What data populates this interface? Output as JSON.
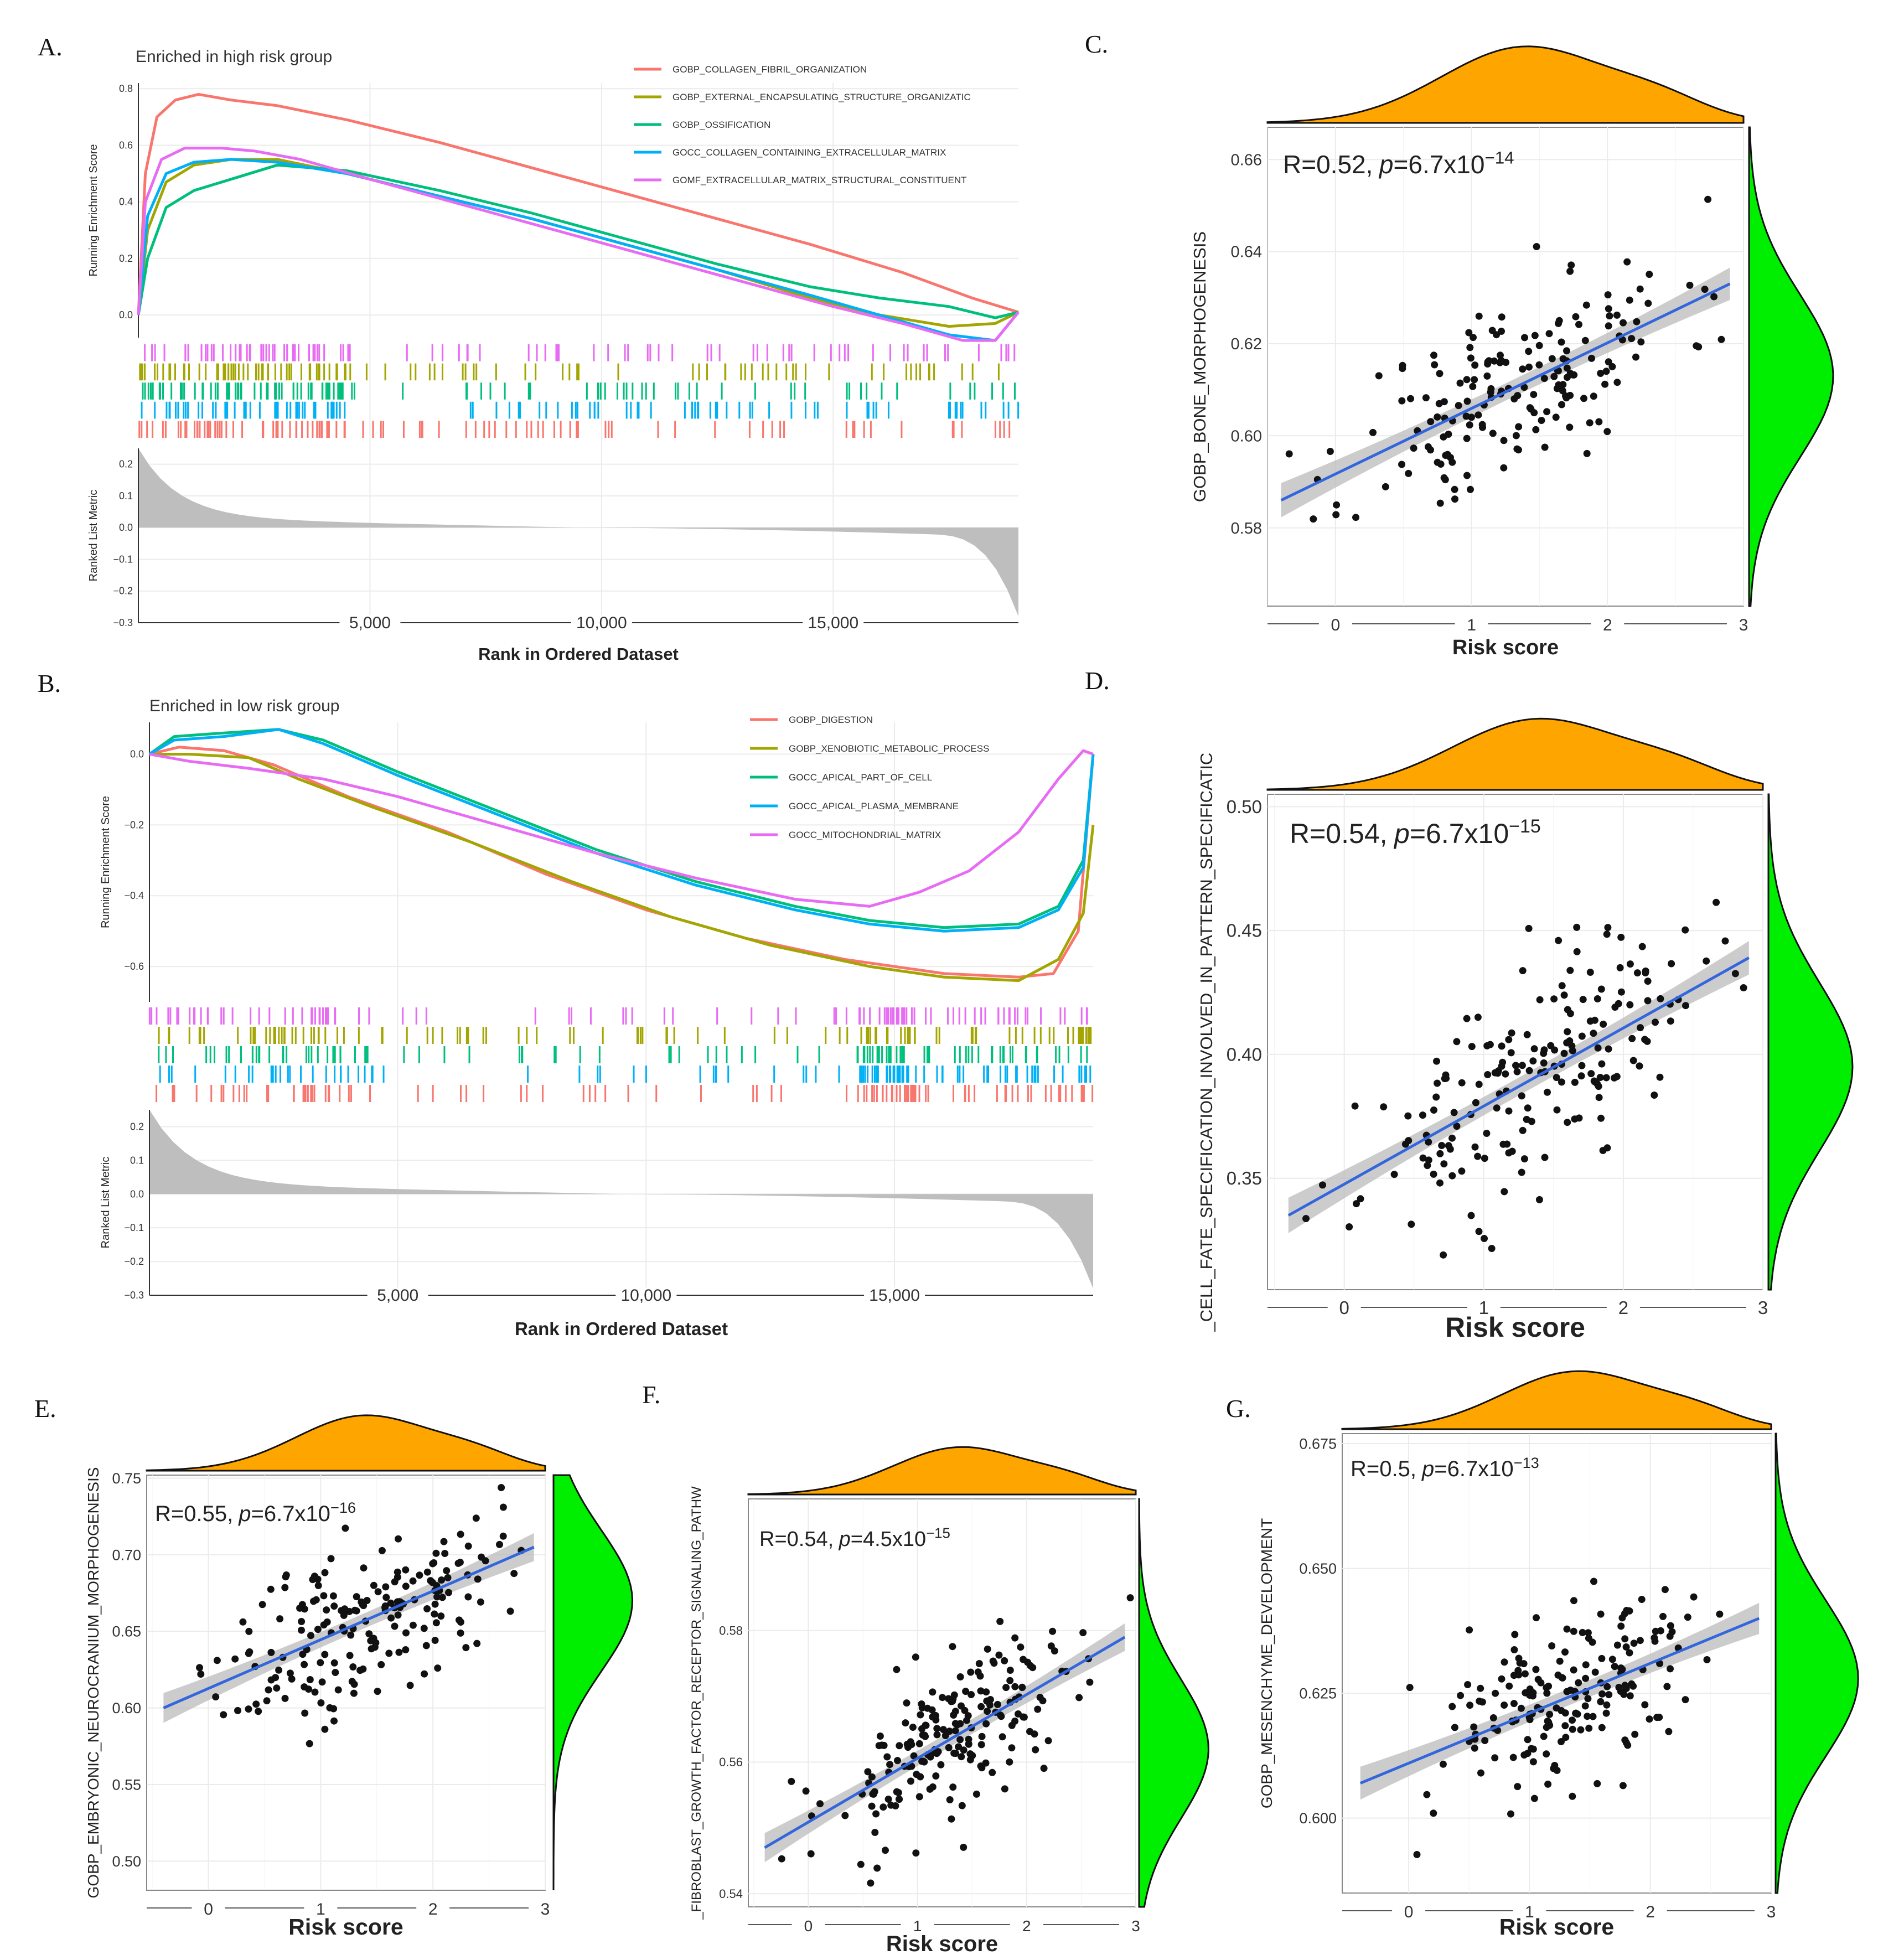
{
  "colors": {
    "orange_density": "#FFA500",
    "green_density": "#00EE00",
    "regression": "#3366DD",
    "ci_band": "#BBBBBB",
    "metric_area": "#BEBEBE",
    "points": "#111111"
  },
  "chart_data": [
    {
      "id": "A",
      "type": "line",
      "panel_label": "A.",
      "title": "Enriched in high risk group",
      "xlabel": "Rank in Ordered Dataset",
      "ylabel": "Running Enrichment Score",
      "ylabel_bottom": "Ranked List Metric",
      "xlim": [
        0,
        19000
      ],
      "ylim": [
        -0.08,
        0.82
      ],
      "yticks": [
        0.0,
        0.2,
        0.4,
        0.6,
        0.8
      ],
      "ytick_labels": [
        "0.0",
        "0.2",
        "0.4",
        "0.6",
        "0.8"
      ],
      "xticks": [
        5000,
        10000,
        15000
      ],
      "xtick_labels": [
        "5,000",
        "10,000",
        "15,000"
      ],
      "metric_ylim": [
        -0.3,
        0.25
      ],
      "metric_yticks": [
        0.2,
        0.1,
        0.0,
        -0.1,
        -0.2,
        -0.3
      ],
      "metric_ytick_labels": [
        "0.2",
        "0.1",
        "0.0",
        "−0.1",
        "−0.2",
        "−0.3"
      ],
      "series": [
        {
          "name": "GOBP_COLLAGEN_FIBRIL_ORGANIZATION",
          "color": "#F8766D",
          "x": [
            0,
            150,
            400,
            800,
            1300,
            2000,
            3000,
            4500,
            6500,
            8500,
            10500,
            12500,
            14500,
            16500,
            18000,
            19000
          ],
          "y": [
            0,
            0.5,
            0.7,
            0.76,
            0.78,
            0.76,
            0.74,
            0.69,
            0.61,
            0.52,
            0.43,
            0.34,
            0.25,
            0.15,
            0.06,
            0.01
          ]
        },
        {
          "name": "GOBP_EXTERNAL_ENCAPSULATING_STRUCTURE_ORGANIZATIC",
          "color": "#A3A500",
          "x": [
            0,
            200,
            600,
            1200,
            2000,
            3000,
            4500,
            6500,
            8500,
            10500,
            12500,
            14500,
            16000,
            17500,
            18500,
            19000
          ],
          "y": [
            0,
            0.3,
            0.47,
            0.53,
            0.55,
            0.55,
            0.5,
            0.42,
            0.34,
            0.25,
            0.16,
            0.06,
            0.0,
            -0.04,
            -0.03,
            0.01
          ]
        },
        {
          "name": "GOBP_OSSIFICATION",
          "color": "#00BF7D",
          "x": [
            0,
            200,
            600,
            1200,
            2000,
            3000,
            4500,
            6500,
            8500,
            10500,
            12500,
            14500,
            16000,
            17500,
            18500,
            19000
          ],
          "y": [
            0,
            0.2,
            0.38,
            0.44,
            0.48,
            0.53,
            0.51,
            0.44,
            0.36,
            0.27,
            0.18,
            0.1,
            0.06,
            0.03,
            -0.01,
            0.01
          ]
        },
        {
          "name": "GOCC_COLLAGEN_CONTAINING_EXTRACELLULAR_MATRIX",
          "color": "#00B0F6",
          "x": [
            0,
            200,
            600,
            1200,
            2000,
            3000,
            4500,
            6500,
            8500,
            10500,
            12500,
            14500,
            16000,
            17500,
            18500,
            19000
          ],
          "y": [
            0,
            0.35,
            0.5,
            0.54,
            0.55,
            0.54,
            0.5,
            0.42,
            0.34,
            0.25,
            0.16,
            0.07,
            0.0,
            -0.07,
            -0.09,
            0.01
          ]
        },
        {
          "name": "GOMF_EXTRACELLULAR_MATRIX_STRUCTURAL_CONSTITUENT",
          "color": "#E76BF3",
          "x": [
            0,
            150,
            500,
            1000,
            1800,
            2500,
            3500,
            5000,
            7000,
            9000,
            11000,
            13000,
            15000,
            16500,
            17800,
            18500,
            19000
          ],
          "y": [
            0,
            0.4,
            0.55,
            0.59,
            0.59,
            0.58,
            0.55,
            0.48,
            0.39,
            0.3,
            0.21,
            0.12,
            0.03,
            -0.03,
            -0.09,
            -0.09,
            0.01
          ]
        }
      ]
    },
    {
      "id": "B",
      "type": "line",
      "panel_label": "B.",
      "title": "Enriched in low risk group",
      "xlabel": "Rank in Ordered Dataset",
      "ylabel": "Running Enrichment Score",
      "ylabel_bottom": "Ranked List Metric",
      "xlim": [
        0,
        19000
      ],
      "ylim": [
        -0.7,
        0.09
      ],
      "yticks": [
        0.0,
        -0.2,
        -0.4,
        -0.6
      ],
      "ytick_labels": [
        "0.0",
        "−0.2",
        "−0.4",
        "−0.6"
      ],
      "xticks": [
        5000,
        10000,
        15000
      ],
      "xtick_labels": [
        "5,000",
        "10,000",
        "15,000"
      ],
      "metric_ylim": [
        -0.3,
        0.25
      ],
      "metric_yticks": [
        0.2,
        0.1,
        0.0,
        -0.1,
        -0.2,
        -0.3
      ],
      "metric_ytick_labels": [
        "0.2",
        "0.1",
        "0.0",
        "−0.1",
        "−0.2",
        "−0.3"
      ],
      "series": [
        {
          "name": "GOBP_DIGESTION",
          "color": "#F8766D",
          "x": [
            0,
            600,
            1500,
            2500,
            4000,
            6000,
            8000,
            10000,
            12000,
            14000,
            16000,
            17500,
            18200,
            18700,
            19000
          ],
          "y": [
            0,
            0.02,
            0.01,
            -0.03,
            -0.12,
            -0.22,
            -0.34,
            -0.44,
            -0.52,
            -0.58,
            -0.62,
            -0.63,
            -0.62,
            -0.5,
            0.0
          ]
        },
        {
          "name": "GOBP_XENOBIOTIC_METABOLIC_PROCESS",
          "color": "#A3A500",
          "x": [
            0,
            800,
            2000,
            3000,
            4500,
            6500,
            8500,
            10500,
            12500,
            14500,
            16000,
            17500,
            18300,
            18800,
            19000
          ],
          "y": [
            0,
            0.0,
            -0.01,
            -0.07,
            -0.15,
            -0.25,
            -0.36,
            -0.46,
            -0.54,
            -0.6,
            -0.63,
            -0.64,
            -0.58,
            -0.45,
            -0.2
          ]
        },
        {
          "name": "GOCC_APICAL_PART_OF_CELL",
          "color": "#00BF7D",
          "x": [
            0,
            500,
            1500,
            2600,
            3500,
            5000,
            7000,
            9000,
            11000,
            13000,
            14500,
            16000,
            17500,
            18300,
            18800,
            19000
          ],
          "y": [
            0,
            0.05,
            0.06,
            0.07,
            0.04,
            -0.05,
            -0.16,
            -0.27,
            -0.36,
            -0.43,
            -0.47,
            -0.49,
            -0.48,
            -0.43,
            -0.3,
            0.0
          ]
        },
        {
          "name": "GOCC_APICAL_PLASMA_MEMBRANE",
          "color": "#00B0F6",
          "x": [
            0,
            500,
            1500,
            2600,
            3500,
            5000,
            7000,
            9000,
            11000,
            13000,
            14500,
            16000,
            17500,
            18300,
            18800,
            19000
          ],
          "y": [
            0,
            0.04,
            0.05,
            0.07,
            0.03,
            -0.06,
            -0.17,
            -0.28,
            -0.37,
            -0.44,
            -0.48,
            -0.5,
            -0.49,
            -0.44,
            -0.32,
            0.0
          ]
        },
        {
          "name": "GOCC_MITOCHONDRIAL_MATRIX",
          "color": "#E76BF3",
          "x": [
            0,
            800,
            2000,
            3500,
            5000,
            7000,
            9000,
            11000,
            13000,
            14500,
            15500,
            16500,
            17500,
            18300,
            18800,
            19000
          ],
          "y": [
            0,
            -0.02,
            -0.04,
            -0.07,
            -0.12,
            -0.2,
            -0.28,
            -0.35,
            -0.41,
            -0.43,
            -0.39,
            -0.33,
            -0.22,
            -0.07,
            0.01,
            0.0
          ]
        }
      ]
    },
    {
      "id": "C",
      "type": "scatter",
      "panel_label": "C.",
      "xlabel": "Risk score",
      "ylabel": "GOBP_BONE_MORPHOGENESIS",
      "stat_r": "R=0.52,",
      "stat_p_symbol": "p",
      "stat_p_value": "=6.7x10",
      "stat_p_exp": "−14",
      "xlim": [
        -0.5,
        3.0
      ],
      "ylim": [
        0.563,
        0.667
      ],
      "xticks": [
        0,
        1,
        2,
        3
      ],
      "xtick_labels": [
        "0",
        "1",
        "2",
        "3"
      ],
      "yticks": [
        0.58,
        0.6,
        0.62,
        0.64,
        0.66
      ],
      "ytick_labels": [
        "0.58",
        "0.60",
        "0.62",
        "0.64",
        "0.66"
      ],
      "regression": {
        "x0": -0.4,
        "y0": 0.586,
        "x1": 2.9,
        "y1": 0.633
      },
      "density_x_peak": 1.4,
      "density_y_peak": 0.613,
      "seed": 11,
      "n_points": 180
    },
    {
      "id": "D",
      "type": "scatter",
      "panel_label": "D.",
      "xlabel": "Risk score",
      "ylabel": "_CELL_FATE_SPECIFICATION_INVOLVED_IN_PATTERN_SPECIFICATIC",
      "stat_r": "R=0.54,",
      "stat_p_symbol": "p",
      "stat_p_value": "=6.7x10",
      "stat_p_exp": "−15",
      "xlim": [
        -0.55,
        3.0
      ],
      "ylim": [
        0.305,
        0.505
      ],
      "xticks": [
        0,
        1,
        2,
        3
      ],
      "xtick_labels": [
        "0",
        "1",
        "2",
        "3"
      ],
      "yticks": [
        0.35,
        0.4,
        0.45,
        0.5
      ],
      "ytick_labels": [
        "0.35",
        "0.40",
        "0.45",
        "0.50"
      ],
      "regression": {
        "x0": -0.4,
        "y0": 0.335,
        "x1": 2.9,
        "y1": 0.439
      },
      "density_x_peak": 1.4,
      "density_y_peak": 0.395,
      "seed": 23,
      "n_points": 190
    },
    {
      "id": "E",
      "type": "scatter",
      "panel_label": "E.",
      "xlabel": "Risk score",
      "ylabel": "GOBP_EMBRYONIC_NEUROCRANIUM_MORPHOGENESIS",
      "stat_r": "R=0.55,",
      "stat_p_symbol": "p",
      "stat_p_value": "=6.7x10",
      "stat_p_exp": "−16",
      "xlim": [
        -0.55,
        3.0
      ],
      "ylim": [
        0.481,
        0.752
      ],
      "xticks": [
        0,
        1,
        2,
        3
      ],
      "xtick_labels": [
        "0",
        "1",
        "2",
        "3"
      ],
      "yticks": [
        0.5,
        0.55,
        0.6,
        0.65,
        0.7,
        0.75
      ],
      "ytick_labels": [
        "0.50",
        "0.55",
        "0.60",
        "0.65",
        "0.70",
        "0.75"
      ],
      "regression": {
        "x0": -0.4,
        "y0": 0.6,
        "x1": 2.9,
        "y1": 0.705
      },
      "density_x_peak": 1.4,
      "density_y_peak": 0.67,
      "seed": 37,
      "n_points": 190
    },
    {
      "id": "F",
      "type": "scatter",
      "panel_label": "F.",
      "xlabel": "Risk score",
      "ylabel": "_FIBROBLAST_GROWTH_FACTOR_RECEPTOR_SIGNALING_PATHW",
      "stat_r": "R=0.54,",
      "stat_p_symbol": "p",
      "stat_p_value": "=4.5x10",
      "stat_p_exp": "−15",
      "xlim": [
        -0.55,
        3.0
      ],
      "ylim": [
        0.538,
        0.6
      ],
      "xticks": [
        0,
        1,
        2,
        3
      ],
      "xtick_labels": [
        "0",
        "1",
        "2",
        "3"
      ],
      "yticks": [
        0.54,
        0.56,
        0.58
      ],
      "ytick_labels": [
        "0.54",
        "0.56",
        "0.58"
      ],
      "regression": {
        "x0": -0.4,
        "y0": 0.547,
        "x1": 2.9,
        "y1": 0.579
      },
      "density_x_peak": 1.4,
      "density_y_peak": 0.562,
      "seed": 53,
      "n_points": 200
    },
    {
      "id": "G",
      "type": "scatter",
      "panel_label": "G.",
      "xlabel": "Risk score",
      "ylabel": "GOBP_MESENCHYME_DEVELOPMENT",
      "stat_r": "R=0.5,",
      "stat_p_symbol": "p",
      "stat_p_value": "=6.7x10",
      "stat_p_exp": "−13",
      "xlim": [
        -0.55,
        3.0
      ],
      "ylim": [
        0.585,
        0.677
      ],
      "xticks": [
        0,
        1,
        2,
        3
      ],
      "xtick_labels": [
        "0",
        "1",
        "2",
        "3"
      ],
      "yticks": [
        0.6,
        0.625,
        0.65,
        0.675
      ],
      "ytick_labels": [
        "0.600",
        "0.625",
        "0.650",
        "0.675"
      ],
      "regression": {
        "x0": -0.4,
        "y0": 0.607,
        "x1": 2.9,
        "y1": 0.64
      },
      "density_x_peak": 1.4,
      "density_y_peak": 0.628,
      "seed": 71,
      "n_points": 190
    }
  ]
}
